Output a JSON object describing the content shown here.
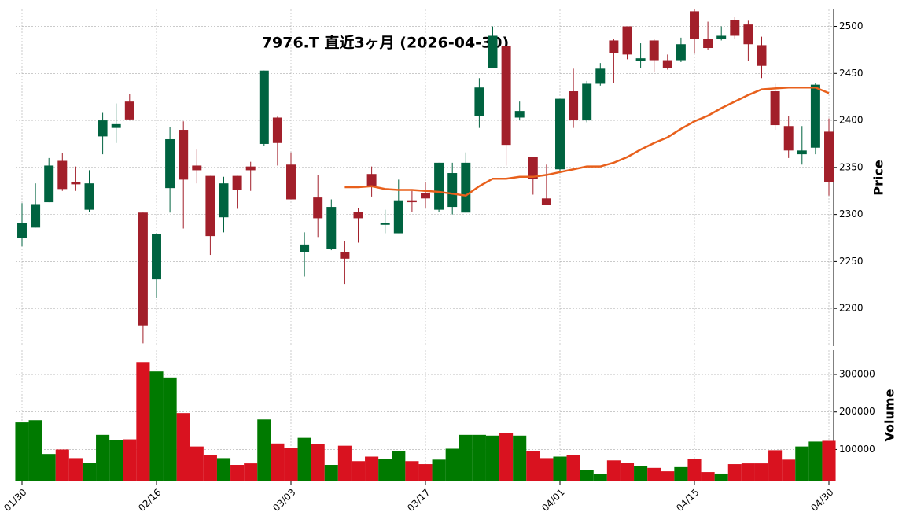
{
  "chart_data": [
    {
      "type": "candlestick",
      "title": "7976.T  直近3ヶ月  (2026-04-30)",
      "ylabel": "Price",
      "open": [
        2275,
        2286,
        2313,
        2357,
        2334,
        2305,
        2383,
        2392,
        2420,
        2302,
        2231,
        2328,
        2390,
        2352,
        2341,
        2297,
        2341,
        2351,
        2375,
        2403,
        2353,
        2260,
        2318,
        2263,
        2260,
        2303,
        2343,
        2289,
        2280,
        2315,
        2323,
        2305,
        2308,
        2302,
        2405,
        2456,
        2479,
        2403,
        2361,
        2317,
        2348,
        2431,
        2400,
        2439,
        2485,
        2500,
        2463,
        2485,
        2464,
        2464,
        2516,
        2487,
        2487,
        2507,
        2502,
        2480,
        2431,
        2394,
        2364,
        2371,
        2388
      ],
      "high": [
        2312,
        2333,
        2360,
        2365,
        2351,
        2347,
        2408,
        2418,
        2428,
        2302,
        2280,
        2393,
        2399,
        2369,
        2341,
        2340,
        2341,
        2356,
        2453,
        2404,
        2366,
        2281,
        2342,
        2316,
        2272,
        2307,
        2351,
        2305,
        2337,
        2325,
        2334,
        2355,
        2355,
        2366,
        2445,
        2500,
        2479,
        2420,
        2361,
        2353,
        2423,
        2455,
        2442,
        2461,
        2487,
        2500,
        2482,
        2487,
        2470,
        2488,
        2518,
        2505,
        2500,
        2510,
        2506,
        2489,
        2439,
        2405,
        2394,
        2440,
        2402
      ],
      "low": [
        2266,
        2286,
        2313,
        2325,
        2325,
        2303,
        2364,
        2376,
        2400,
        2163,
        2211,
        2302,
        2285,
        2333,
        2257,
        2281,
        2306,
        2325,
        2373,
        2352,
        2316,
        2234,
        2276,
        2262,
        2226,
        2270,
        2319,
        2280,
        2280,
        2303,
        2307,
        2303,
        2300,
        2302,
        2392,
        2456,
        2352,
        2400,
        2321,
        2310,
        2346,
        2392,
        2398,
        2437,
        2440,
        2465,
        2456,
        2451,
        2454,
        2462,
        2471,
        2475,
        2485,
        2487,
        2463,
        2445,
        2390,
        2360,
        2353,
        2364,
        2320
      ],
      "close": [
        2291,
        2311,
        2352,
        2327,
        2332,
        2333,
        2400,
        2396,
        2401,
        2182,
        2279,
        2380,
        2337,
        2347,
        2277,
        2333,
        2326,
        2347,
        2453,
        2376,
        2316,
        2268,
        2296,
        2308,
        2253,
        2296,
        2329,
        2291,
        2315,
        2313,
        2317,
        2355,
        2344,
        2355,
        2435,
        2490,
        2374,
        2410,
        2338,
        2310,
        2423,
        2400,
        2439,
        2455,
        2472,
        2470,
        2466,
        2464,
        2456,
        2481,
        2487,
        2477,
        2490,
        2490,
        2481,
        2458,
        2395,
        2368,
        2368,
        2438,
        2334
      ],
      "up_color": "#006340",
      "down_color": "#a21f2a",
      "line": {
        "color": "#e8601c",
        "values": [
          null,
          null,
          null,
          null,
          null,
          null,
          null,
          null,
          null,
          null,
          null,
          null,
          null,
          null,
          null,
          null,
          null,
          null,
          null,
          null,
          null,
          null,
          null,
          null,
          2329,
          2329,
          2330,
          2327,
          2326,
          2326,
          2325,
          2324,
          2322,
          2320,
          2330,
          2338,
          2338,
          2340,
          2340,
          2342,
          2345,
          2348,
          2351,
          2351,
          2355,
          2361,
          2369,
          2376,
          2382,
          2391,
          2399,
          2405,
          2413,
          2420,
          2427,
          2433,
          2434,
          2435,
          2435,
          2435,
          2429
        ]
      },
      "ylim": [
        2160,
        2518
      ],
      "yticks": [
        2200,
        2250,
        2300,
        2350,
        2400,
        2450,
        2500
      ],
      "grid": true
    },
    {
      "type": "bar",
      "ylabel": "Volume",
      "categories": [
        "01/30",
        null,
        null,
        null,
        null,
        null,
        null,
        null,
        null,
        null,
        "02/16",
        null,
        null,
        null,
        null,
        null,
        null,
        null,
        null,
        null,
        "03/03",
        null,
        null,
        null,
        null,
        null,
        null,
        null,
        null,
        null,
        "03/17",
        null,
        null,
        null,
        null,
        null,
        null,
        null,
        null,
        null,
        "04/01",
        null,
        null,
        null,
        null,
        null,
        null,
        null,
        null,
        null,
        "04/15",
        null,
        null,
        null,
        null,
        null,
        null,
        null,
        null,
        null,
        "04/30"
      ],
      "values": [
        172000,
        178000,
        88000,
        100000,
        77000,
        65000,
        139000,
        125000,
        127000,
        333000,
        308000,
        292000,
        197000,
        108000,
        86000,
        77000,
        59000,
        63000,
        180000,
        116000,
        104000,
        131000,
        114000,
        59000,
        110000,
        69000,
        81000,
        75000,
        96000,
        69000,
        61000,
        73000,
        102000,
        139000,
        139000,
        137000,
        143000,
        137000,
        96000,
        77000,
        81000,
        86000,
        46000,
        34000,
        71000,
        65000,
        55000,
        51000,
        42000,
        53000,
        75000,
        40000,
        36000,
        61000,
        63000,
        63000,
        98000,
        73000,
        108000,
        121000,
        123000
      ],
      "up_color": "#007a00",
      "down_color": "#d9121f",
      "ylim": [
        15000,
        365000
      ],
      "yticks": [
        100000,
        200000,
        300000
      ],
      "grid": true
    }
  ]
}
